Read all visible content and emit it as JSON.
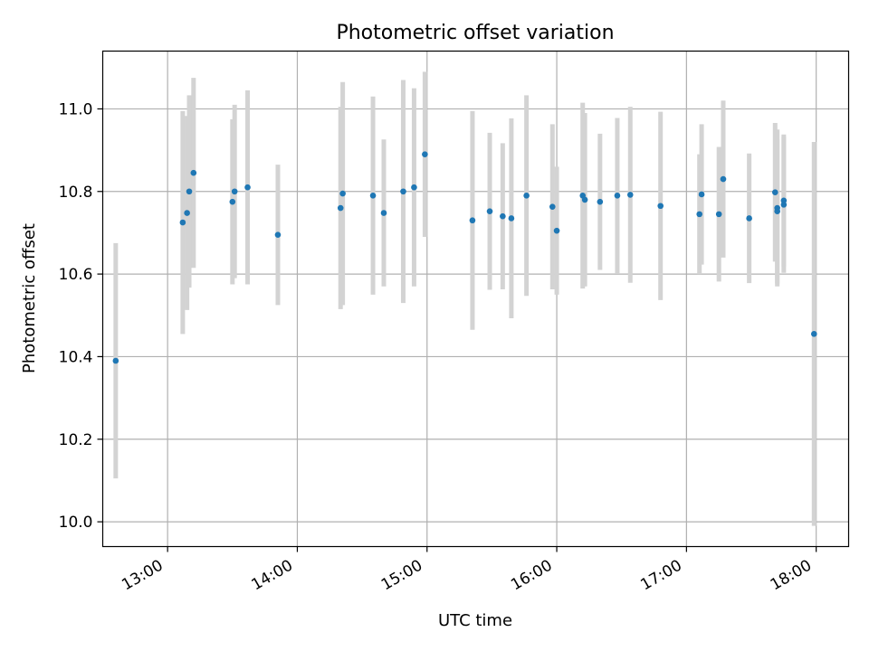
{
  "chart_data": {
    "type": "scatter",
    "title": "Photometric offset variation",
    "xlabel": "UTC time",
    "ylabel": "Photometric offset",
    "xlim": [
      "12:30",
      "18:15"
    ],
    "ylim": [
      9.94,
      11.14
    ],
    "x_ticks": [
      "13:00",
      "14:00",
      "15:00",
      "16:00",
      "17:00",
      "18:00"
    ],
    "y_ticks": [
      "10.0",
      "10.2",
      "10.4",
      "10.6",
      "10.8",
      "11.0"
    ],
    "grid": true,
    "colors": {
      "point": "#1f77b4",
      "errorbar": "#d3d3d3",
      "grid": "#b0b0b0"
    },
    "points": [
      {
        "t": "12:36",
        "y": 10.39,
        "err": 0.285
      },
      {
        "t": "13:07",
        "y": 10.725,
        "err": 0.27
      },
      {
        "t": "13:09",
        "y": 10.748,
        "err": 0.235
      },
      {
        "t": "13:10",
        "y": 10.8,
        "err": 0.233
      },
      {
        "t": "13:12",
        "y": 10.845,
        "err": 0.23
      },
      {
        "t": "13:30",
        "y": 10.775,
        "err": 0.2
      },
      {
        "t": "13:31",
        "y": 10.8,
        "err": 0.21
      },
      {
        "t": "13:37",
        "y": 10.81,
        "err": 0.235
      },
      {
        "t": "13:51",
        "y": 10.695,
        "err": 0.17
      },
      {
        "t": "14:20",
        "y": 10.76,
        "err": 0.245
      },
      {
        "t": "14:21",
        "y": 10.795,
        "err": 0.27
      },
      {
        "t": "14:35",
        "y": 10.79,
        "err": 0.24
      },
      {
        "t": "14:40",
        "y": 10.748,
        "err": 0.178
      },
      {
        "t": "14:49",
        "y": 10.8,
        "err": 0.27
      },
      {
        "t": "14:54",
        "y": 10.81,
        "err": 0.24
      },
      {
        "t": "14:59",
        "y": 10.89,
        "err": 0.2
      },
      {
        "t": "15:21",
        "y": 10.73,
        "err": 0.265
      },
      {
        "t": "15:29",
        "y": 10.752,
        "err": 0.19
      },
      {
        "t": "15:35",
        "y": 10.74,
        "err": 0.177
      },
      {
        "t": "15:39",
        "y": 10.735,
        "err": 0.242
      },
      {
        "t": "15:46",
        "y": 10.79,
        "err": 0.243
      },
      {
        "t": "15:58",
        "y": 10.763,
        "err": 0.2
      },
      {
        "t": "16:00",
        "y": 10.705,
        "err": 0.155
      },
      {
        "t": "16:12",
        "y": 10.79,
        "err": 0.225
      },
      {
        "t": "16:13",
        "y": 10.78,
        "err": 0.21
      },
      {
        "t": "16:20",
        "y": 10.775,
        "err": 0.165
      },
      {
        "t": "16:28",
        "y": 10.79,
        "err": 0.188
      },
      {
        "t": "16:34",
        "y": 10.792,
        "err": 0.213
      },
      {
        "t": "16:48",
        "y": 10.765,
        "err": 0.228
      },
      {
        "t": "17:06",
        "y": 10.745,
        "err": 0.145
      },
      {
        "t": "17:07",
        "y": 10.793,
        "err": 0.17
      },
      {
        "t": "17:15",
        "y": 10.745,
        "err": 0.163
      },
      {
        "t": "17:17",
        "y": 10.83,
        "err": 0.19
      },
      {
        "t": "17:29",
        "y": 10.735,
        "err": 0.157
      },
      {
        "t": "17:41",
        "y": 10.798,
        "err": 0.168
      },
      {
        "t": "17:42",
        "y": 10.76,
        "err": 0.19
      },
      {
        "t": "17:42",
        "y": 10.752,
        "err": 0.175
      },
      {
        "t": "17:45",
        "y": 10.778,
        "err": 0.16
      },
      {
        "t": "17:45",
        "y": 10.768,
        "err": 0.165
      },
      {
        "t": "17:59",
        "y": 10.455,
        "err": 0.465
      }
    ]
  }
}
